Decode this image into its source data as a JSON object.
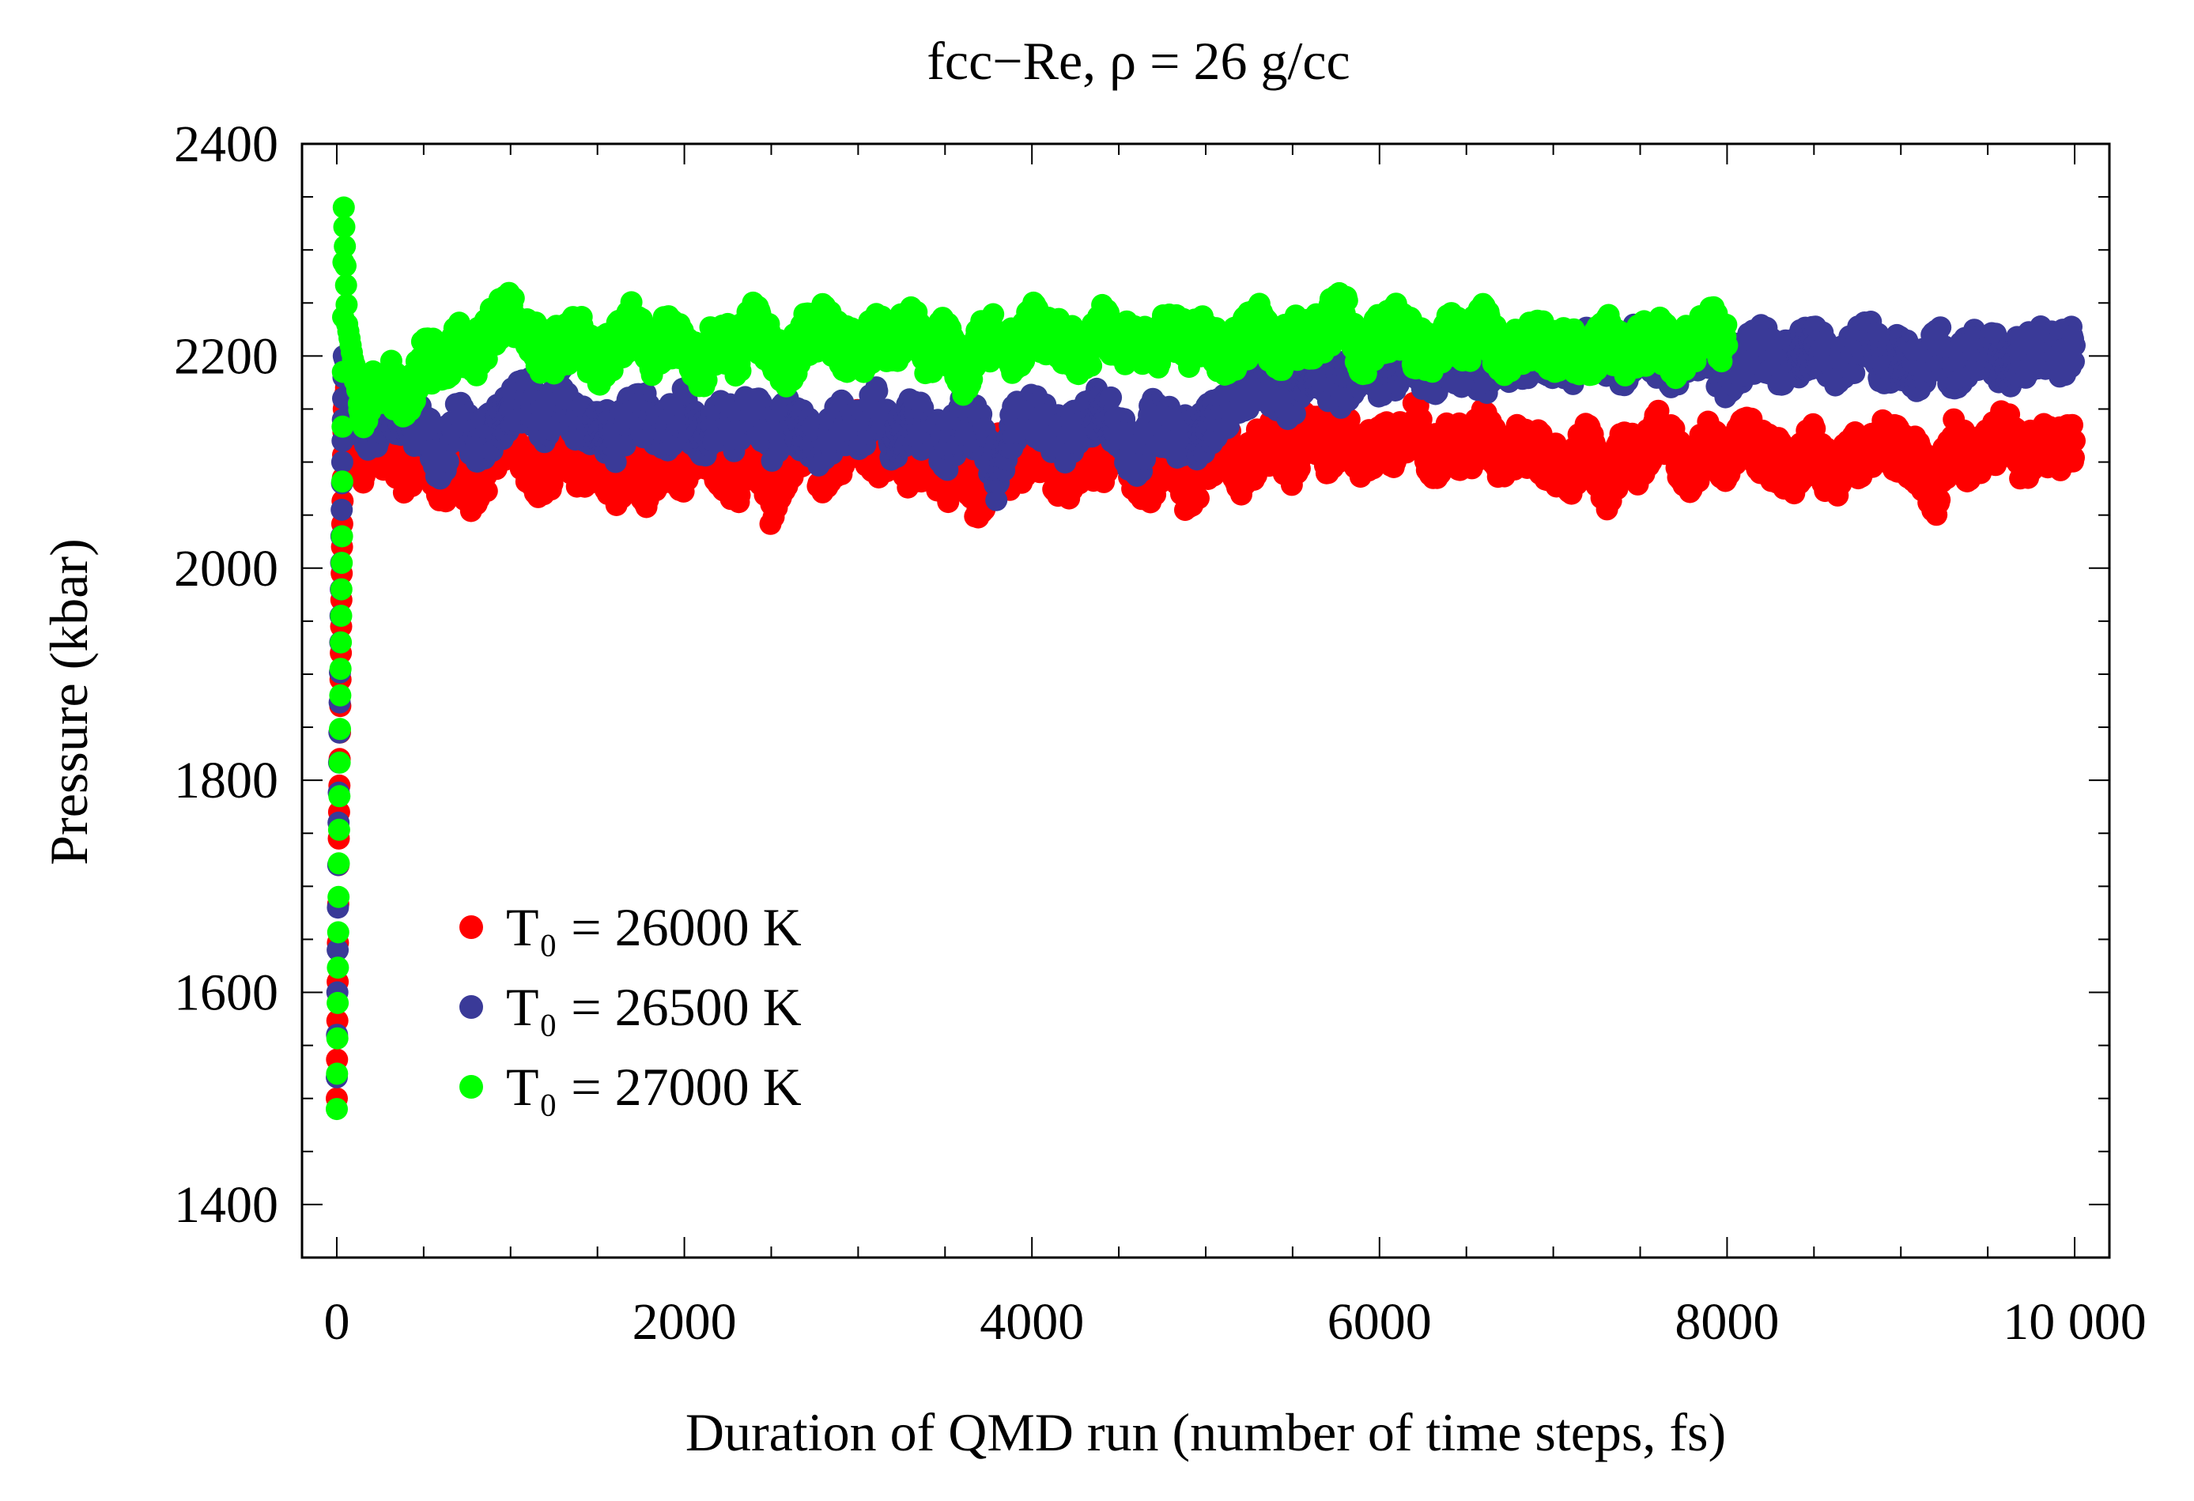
{
  "chart_data": {
    "type": "scatter",
    "title": "fcc−Re, ρ = 26 g/cc",
    "xlabel": "Duration of QMD run (number of time steps, fs)",
    "ylabel": "Pressure (kbar)",
    "xlim": [
      -200,
      10200
    ],
    "ylim": [
      1350,
      2400
    ],
    "xticks": [
      0,
      2000,
      4000,
      6000,
      8000,
      10000
    ],
    "xtick_labels": [
      "0",
      "2000",
      "4000",
      "6000",
      "8000",
      "10 000"
    ],
    "yticks": [
      1400,
      1600,
      1800,
      2000,
      2200,
      2400
    ],
    "ytick_labels": [
      "1400",
      "1600",
      "1800",
      "2000",
      "2200",
      "2400"
    ],
    "legend_position": "lower-left",
    "series": [
      {
        "name": "T₀ = 26000 K",
        "color": "#ff0000",
        "x": [
          0,
          10,
          20,
          30,
          40,
          60,
          100,
          150,
          200,
          300,
          400,
          500,
          600,
          700,
          800,
          900,
          1000,
          1100,
          1200,
          1300,
          1400,
          1500,
          1600,
          1700,
          1800,
          1900,
          2000,
          2100,
          2200,
          2300,
          2400,
          2500,
          2600,
          2700,
          2800,
          2900,
          3000,
          3100,
          3200,
          3300,
          3400,
          3500,
          3600,
          3700,
          3800,
          3900,
          4000,
          4100,
          4200,
          4300,
          4400,
          4500,
          4600,
          4700,
          4800,
          4900,
          5000,
          5100,
          5200,
          5300,
          5400,
          5500,
          5600,
          5700,
          5800,
          5900,
          6000,
          6100,
          6200,
          6300,
          6400,
          6500,
          6600,
          6700,
          6800,
          6900,
          7000,
          7100,
          7200,
          7300,
          7400,
          7500,
          7600,
          7700,
          7800,
          7900,
          8000,
          8100,
          8200,
          8300,
          8400,
          8500,
          8600,
          8700,
          8800,
          8900,
          9000,
          9100,
          9200,
          9300,
          9400,
          9500,
          9600,
          9700,
          9800,
          9900,
          10000
        ],
        "y": [
          1500,
          1720,
          1870,
          2020,
          2150,
          2180,
          2140,
          2100,
          2120,
          2110,
          2090,
          2120,
          2080,
          2100,
          2060,
          2110,
          2130,
          2100,
          2080,
          2120,
          2090,
          2110,
          2080,
          2100,
          2070,
          2110,
          2090,
          2120,
          2100,
          2080,
          2110,
          2060,
          2100,
          2120,
          2090,
          2110,
          2130,
          2100,
          2120,
          2090,
          2110,
          2080,
          2100,
          2060,
          2110,
          2090,
          2120,
          2100,
          2080,
          2110,
          2100,
          2120,
          2090,
          2080,
          2110,
          2070,
          2100,
          2120,
          2090,
          2110,
          2120,
          2100,
          2140,
          2110,
          2130,
          2100,
          2120,
          2110,
          2140,
          2100,
          2120,
          2110,
          2130,
          2100,
          2120,
          2110,
          2100,
          2090,
          2120,
          2070,
          2110,
          2100,
          2130,
          2110,
          2090,
          2120,
          2100,
          2130,
          2110,
          2100,
          2090,
          2120,
          2080,
          2110,
          2100,
          2120,
          2110,
          2100,
          2070,
          2120,
          2100,
          2110,
          2130,
          2100,
          2120,
          2110,
          2120
        ]
      },
      {
        "name": "T₀ = 26500 K",
        "color": "#3a3a98",
        "x": [
          0,
          10,
          20,
          30,
          40,
          60,
          100,
          150,
          200,
          300,
          400,
          500,
          600,
          700,
          800,
          900,
          1000,
          1100,
          1200,
          1300,
          1400,
          1500,
          1600,
          1700,
          1800,
          1900,
          2000,
          2100,
          2200,
          2300,
          2400,
          2500,
          2600,
          2700,
          2800,
          2900,
          3000,
          3100,
          3200,
          3300,
          3400,
          3500,
          3600,
          3700,
          3800,
          3900,
          4000,
          4100,
          4200,
          4300,
          4400,
          4500,
          4600,
          4700,
          4800,
          4900,
          5000,
          5100,
          5200,
          5300,
          5400,
          5500,
          5600,
          5700,
          5800,
          5900,
          6000,
          6100,
          6200,
          6300,
          6400,
          6500,
          6600,
          6700,
          6800,
          6900,
          7000,
          7100,
          7200,
          7300,
          7400,
          7500,
          7600,
          7700,
          7800,
          7900,
          8000,
          8100,
          8200,
          8300,
          8400,
          8500,
          8600,
          8700,
          8800,
          8900,
          9000,
          9100,
          9200,
          9300,
          9400,
          9500,
          9600,
          9700,
          9800,
          9900,
          10000
        ],
        "y": [
          1520,
          1760,
          1930,
          2080,
          2200,
          2190,
          2150,
          2140,
          2130,
          2150,
          2140,
          2130,
          2100,
          2140,
          2120,
          2130,
          2150,
          2160,
          2140,
          2170,
          2130,
          2140,
          2120,
          2150,
          2140,
          2130,
          2150,
          2120,
          2140,
          2130,
          2150,
          2120,
          2140,
          2130,
          2110,
          2140,
          2130,
          2150,
          2120,
          2140,
          2130,
          2110,
          2140,
          2130,
          2080,
          2140,
          2150,
          2130,
          2120,
          2140,
          2150,
          2130,
          2100,
          2140,
          2130,
          2120,
          2130,
          2150,
          2160,
          2180,
          2170,
          2160,
          2190,
          2180,
          2170,
          2200,
          2180,
          2190,
          2200,
          2180,
          2200,
          2190,
          2180,
          2200,
          2190,
          2210,
          2200,
          2190,
          2210,
          2200,
          2190,
          2220,
          2200,
          2190,
          2210,
          2200,
          2180,
          2200,
          2210,
          2190,
          2200,
          2210,
          2190,
          2200,
          2220,
          2190,
          2200,
          2180,
          2210,
          2190,
          2200,
          2210,
          2190,
          2200,
          2210,
          2200,
          2210
        ]
      },
      {
        "name": "T₀ = 27000 K",
        "color": "#00ff00",
        "x": [
          0,
          10,
          20,
          30,
          40,
          60,
          100,
          150,
          200,
          300,
          400,
          500,
          600,
          700,
          800,
          900,
          1000,
          1100,
          1200,
          1300,
          1400,
          1500,
          1600,
          1700,
          1800,
          1900,
          2000,
          2100,
          2200,
          2300,
          2400,
          2500,
          2600,
          2700,
          2800,
          2900,
          3000,
          3100,
          3200,
          3300,
          3400,
          3500,
          3600,
          3700,
          3800,
          3900,
          4000,
          4100,
          4200,
          4300,
          4400,
          4500,
          4600,
          4700,
          4800,
          4900,
          5000,
          5100,
          5200,
          5300,
          5400,
          5500,
          5600,
          5700,
          5800,
          5900,
          6000,
          6100,
          6200,
          6300,
          6400,
          6500,
          6600,
          6700,
          6800,
          6900,
          7000,
          7100,
          7200,
          7300,
          7400,
          7500,
          7600,
          7700,
          7800,
          7900,
          8000
        ],
        "y": [
          1490,
          1690,
          1880,
          2030,
          2340,
          2230,
          2190,
          2150,
          2170,
          2180,
          2150,
          2200,
          2190,
          2210,
          2200,
          2230,
          2240,
          2220,
          2200,
          2210,
          2220,
          2190,
          2210,
          2230,
          2200,
          2220,
          2210,
          2190,
          2220,
          2200,
          2230,
          2210,
          2190,
          2220,
          2230,
          2210,
          2200,
          2220,
          2210,
          2230,
          2200,
          2220,
          2180,
          2210,
          2220,
          2200,
          2230,
          2220,
          2210,
          2200,
          2230,
          2210,
          2220,
          2200,
          2230,
          2210,
          2220,
          2200,
          2210,
          2230,
          2200,
          2220,
          2210,
          2230,
          2240,
          2200,
          2220,
          2230,
          2210,
          2200,
          2220,
          2210,
          2230,
          2200,
          2210,
          2220,
          2200,
          2210,
          2190,
          2220,
          2200,
          2210,
          2220,
          2200,
          2210,
          2230,
          2210
        ]
      }
    ]
  }
}
